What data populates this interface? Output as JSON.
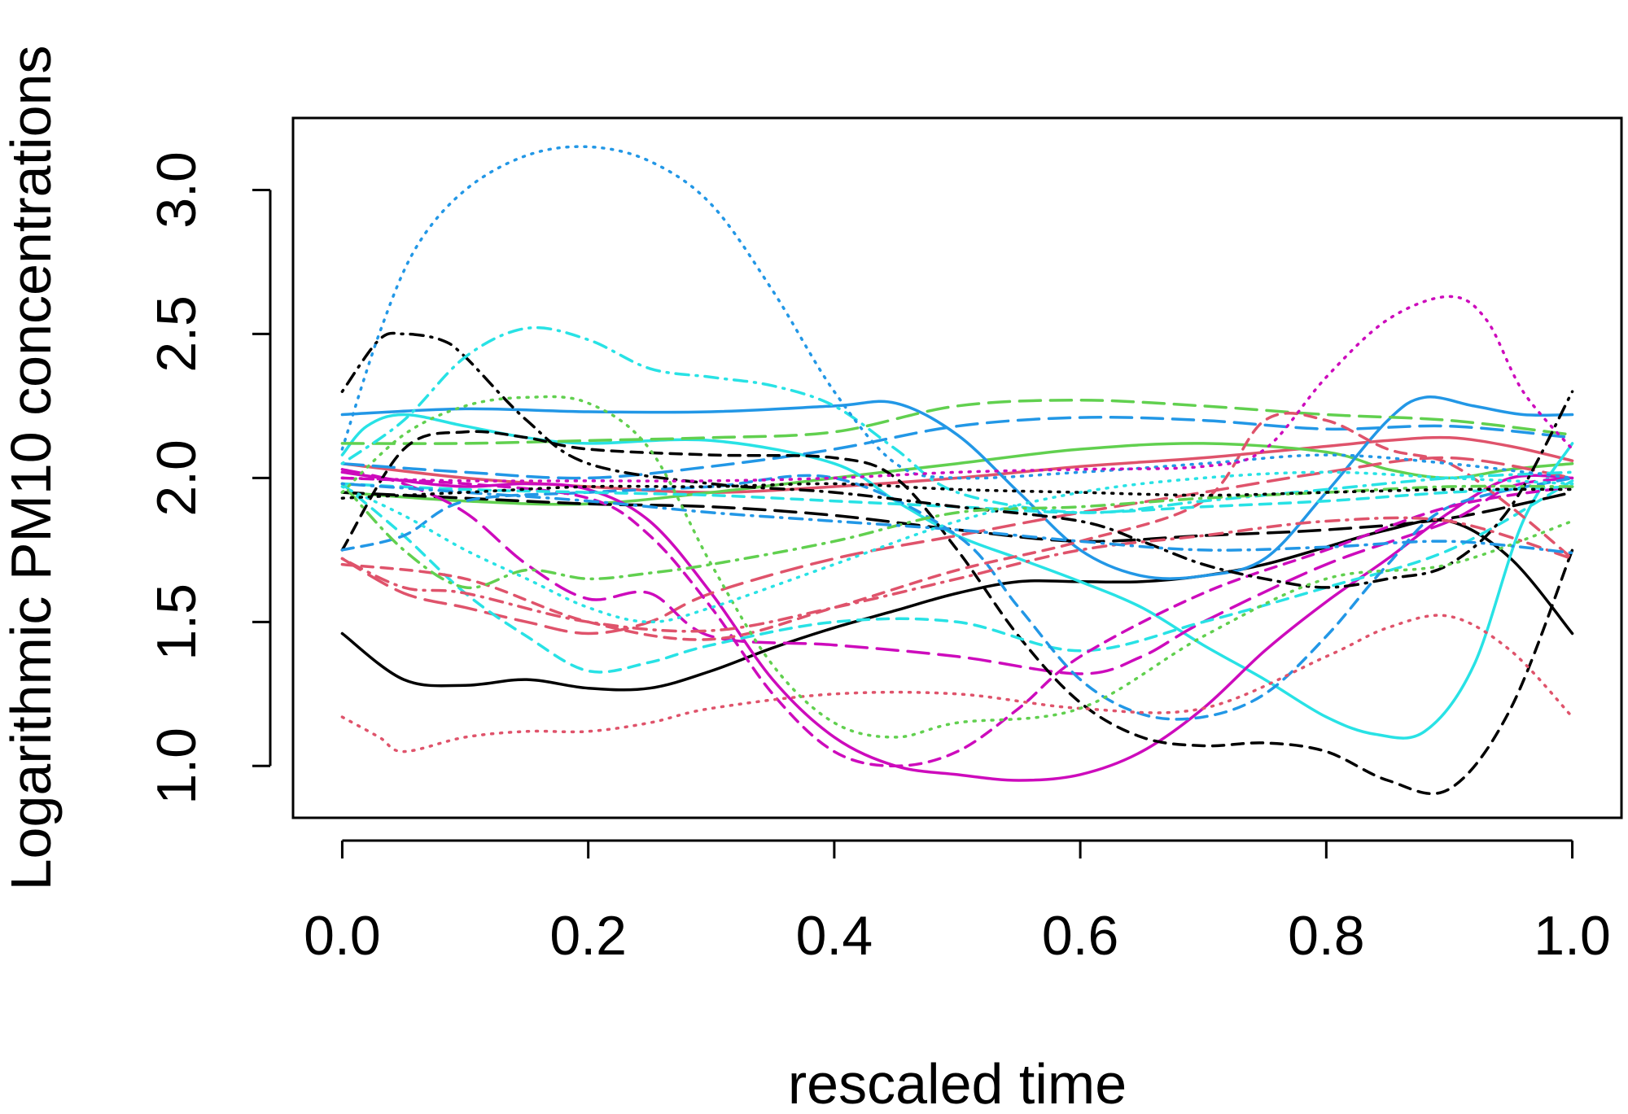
{
  "chart_data": {
    "type": "line",
    "title": "",
    "xlabel": "rescaled time",
    "ylabel": "Logarithmic PM10 concentrations",
    "xlim": [
      -0.04,
      1.04
    ],
    "ylim": [
      0.82,
      3.25
    ],
    "xticks": [
      0.0,
      0.2,
      0.4,
      0.6,
      0.8,
      1.0
    ],
    "xtick_labels": [
      "0.0",
      "0.2",
      "0.4",
      "0.6",
      "0.8",
      "1.0"
    ],
    "yticks": [
      1.0,
      1.5,
      2.0,
      2.5,
      3.0
    ],
    "ytick_labels": [
      "1.0",
      "1.5",
      "2.0",
      "2.5",
      "3.0"
    ],
    "grid": false,
    "legend": "none",
    "series": [
      {
        "color": "#000000",
        "dash": "solid",
        "x": [
          0,
          0.05,
          0.1,
          0.15,
          0.2,
          0.25,
          0.3,
          0.35,
          0.4,
          0.45,
          0.5,
          0.55,
          0.6,
          0.65,
          0.7,
          0.75,
          0.8,
          0.85,
          0.9,
          0.95,
          1
        ],
        "y": [
          1.46,
          1.3,
          1.28,
          1.3,
          1.27,
          1.27,
          1.33,
          1.41,
          1.48,
          1.54,
          1.6,
          1.64,
          1.64,
          1.64,
          1.66,
          1.7,
          1.76,
          1.82,
          1.85,
          1.72,
          1.46
        ]
      },
      {
        "color": "#DF536B",
        "dash": "solid",
        "x": [
          0,
          0.1,
          0.2,
          0.3,
          0.4,
          0.5,
          0.6,
          0.7,
          0.8,
          0.85,
          0.9,
          0.95,
          1
        ],
        "y": [
          2.05,
          2.0,
          1.97,
          1.95,
          1.97,
          2.0,
          2.04,
          2.07,
          2.11,
          2.13,
          2.14,
          2.11,
          2.06
        ]
      },
      {
        "color": "#61D04F",
        "dash": "solid",
        "x": [
          0,
          0.1,
          0.2,
          0.3,
          0.4,
          0.5,
          0.6,
          0.7,
          0.8,
          0.85,
          0.9,
          0.95,
          1
        ],
        "y": [
          1.95,
          1.92,
          1.91,
          1.95,
          2.0,
          2.05,
          2.1,
          2.12,
          2.09,
          2.03,
          2.0,
          2.03,
          2.05
        ]
      },
      {
        "color": "#2297E6",
        "dash": "solid",
        "x": [
          0,
          0.1,
          0.2,
          0.3,
          0.4,
          0.45,
          0.5,
          0.55,
          0.6,
          0.65,
          0.7,
          0.75,
          0.8,
          0.85,
          0.88,
          0.92,
          0.96,
          1
        ],
        "y": [
          2.22,
          2.24,
          2.23,
          2.23,
          2.25,
          2.26,
          2.15,
          1.95,
          1.75,
          1.66,
          1.66,
          1.72,
          1.95,
          2.2,
          2.28,
          2.25,
          2.22,
          2.22
        ]
      },
      {
        "color": "#28E2E5",
        "dash": "solid",
        "x": [
          0,
          0.02,
          0.05,
          0.1,
          0.15,
          0.2,
          0.3,
          0.4,
          0.45,
          0.5,
          0.55,
          0.6,
          0.65,
          0.7,
          0.75,
          0.8,
          0.84,
          0.88,
          0.92,
          0.96,
          1
        ],
        "y": [
          2.08,
          2.18,
          2.22,
          2.18,
          2.14,
          2.12,
          2.13,
          2.05,
          1.92,
          1.8,
          1.72,
          1.64,
          1.55,
          1.42,
          1.3,
          1.17,
          1.11,
          1.12,
          1.35,
          1.85,
          2.12
        ]
      },
      {
        "color": "#CD0BBC",
        "dash": "solid",
        "x": [
          0,
          0.05,
          0.1,
          0.15,
          0.2,
          0.25,
          0.3,
          0.35,
          0.4,
          0.45,
          0.5,
          0.55,
          0.6,
          0.65,
          0.7,
          0.75,
          0.8,
          0.85,
          0.9,
          0.95,
          1
        ],
        "y": [
          2.02,
          1.99,
          1.97,
          1.98,
          1.96,
          1.85,
          1.6,
          1.3,
          1.1,
          1.0,
          0.97,
          0.95,
          0.97,
          1.05,
          1.2,
          1.4,
          1.57,
          1.72,
          1.88,
          2.0,
          2.0
        ]
      },
      {
        "color": "#000000",
        "dash": "longdash",
        "x": [
          0,
          0.1,
          0.2,
          0.3,
          0.4,
          0.5,
          0.6,
          0.7,
          0.8,
          0.9,
          1
        ],
        "y": [
          1.95,
          1.93,
          1.91,
          1.9,
          1.87,
          1.82,
          1.78,
          1.8,
          1.82,
          1.86,
          1.95
        ]
      },
      {
        "color": "#61D04F",
        "dash": "longdash",
        "x": [
          0,
          0.1,
          0.2,
          0.3,
          0.4,
          0.5,
          0.6,
          0.7,
          0.8,
          0.9,
          1
        ],
        "y": [
          2.12,
          2.12,
          2.13,
          2.14,
          2.16,
          2.25,
          2.27,
          2.25,
          2.22,
          2.2,
          2.15
        ]
      },
      {
        "color": "#2297E6",
        "dash": "longdash",
        "x": [
          0,
          0.1,
          0.2,
          0.3,
          0.4,
          0.5,
          0.6,
          0.7,
          0.8,
          0.9,
          1
        ],
        "y": [
          2.05,
          2.02,
          2.0,
          2.04,
          2.1,
          2.18,
          2.21,
          2.2,
          2.17,
          2.18,
          2.14
        ]
      },
      {
        "color": "#DF536B",
        "dash": "longdash",
        "x": [
          0,
          0.05,
          0.1,
          0.15,
          0.2,
          0.25,
          0.3,
          0.4,
          0.5,
          0.6,
          0.7,
          0.8,
          0.9,
          1
        ],
        "y": [
          1.72,
          1.6,
          1.55,
          1.5,
          1.46,
          1.5,
          1.6,
          1.72,
          1.8,
          1.88,
          1.95,
          2.02,
          2.07,
          2.0
        ]
      },
      {
        "color": "#CD0BBC",
        "dash": "longdash",
        "x": [
          0,
          0.05,
          0.1,
          0.15,
          0.2,
          0.25,
          0.3,
          0.4,
          0.5,
          0.6,
          0.65,
          0.7,
          0.8,
          0.9,
          0.95,
          1
        ],
        "y": [
          2.03,
          1.98,
          1.88,
          1.7,
          1.58,
          1.6,
          1.45,
          1.42,
          1.38,
          1.32,
          1.38,
          1.5,
          1.7,
          1.85,
          1.97,
          2.0
        ]
      },
      {
        "color": "#000000",
        "dash": "dashed",
        "x": [
          0,
          0.05,
          0.1,
          0.15,
          0.2,
          0.3,
          0.4,
          0.45,
          0.5,
          0.55,
          0.6,
          0.65,
          0.7,
          0.75,
          0.8,
          0.85,
          0.9,
          0.95,
          1
        ],
        "y": [
          1.75,
          2.1,
          2.16,
          2.14,
          2.1,
          2.08,
          2.07,
          2.0,
          1.75,
          1.45,
          1.22,
          1.1,
          1.07,
          1.08,
          1.05,
          0.95,
          0.92,
          1.2,
          1.75
        ]
      },
      {
        "color": "#28E2E5",
        "dash": "dashed",
        "x": [
          0,
          0.05,
          0.1,
          0.15,
          0.2,
          0.25,
          0.3,
          0.4,
          0.5,
          0.6,
          0.7,
          0.8,
          0.9,
          1
        ],
        "y": [
          1.98,
          1.8,
          1.6,
          1.45,
          1.33,
          1.36,
          1.42,
          1.5,
          1.5,
          1.4,
          1.5,
          1.62,
          1.75,
          1.99
        ]
      },
      {
        "color": "#2297E6",
        "dash": "dashed",
        "x": [
          0,
          0.05,
          0.1,
          0.2,
          0.3,
          0.4,
          0.5,
          0.55,
          0.6,
          0.65,
          0.7,
          0.75,
          0.8,
          0.85,
          0.9,
          1
        ],
        "y": [
          1.75,
          1.8,
          1.92,
          1.95,
          1.97,
          2.0,
          1.8,
          1.55,
          1.3,
          1.18,
          1.17,
          1.25,
          1.45,
          1.7,
          1.9,
          2.0
        ]
      },
      {
        "color": "#CD0BBC",
        "dash": "dashed",
        "x": [
          0,
          0.1,
          0.2,
          0.25,
          0.3,
          0.35,
          0.4,
          0.45,
          0.5,
          0.55,
          0.6,
          0.7,
          0.8,
          0.9,
          1
        ],
        "y": [
          2.0,
          1.98,
          1.93,
          1.8,
          1.55,
          1.25,
          1.05,
          1.0,
          1.05,
          1.2,
          1.38,
          1.6,
          1.75,
          1.9,
          1.97
        ]
      },
      {
        "color": "#DF536B",
        "dash": "dashed",
        "x": [
          0,
          0.1,
          0.2,
          0.3,
          0.4,
          0.5,
          0.6,
          0.7,
          0.75,
          0.8,
          0.85,
          0.9,
          0.95,
          1
        ],
        "y": [
          1.7,
          1.65,
          1.5,
          1.44,
          1.55,
          1.68,
          1.78,
          1.92,
          2.2,
          2.2,
          2.1,
          2.05,
          1.9,
          1.72
        ]
      },
      {
        "color": "#28E2E5",
        "dash": "dashed",
        "x": [
          0,
          0.1,
          0.2,
          0.3,
          0.4,
          0.5,
          0.6,
          0.7,
          0.8,
          0.9,
          1
        ],
        "y": [
          1.98,
          1.96,
          1.95,
          1.94,
          1.92,
          1.9,
          1.88,
          1.9,
          1.92,
          1.95,
          1.97
        ]
      },
      {
        "color": "#000000",
        "dash": "dotdash",
        "x": [
          0,
          0.03,
          0.05,
          0.08,
          0.1,
          0.15,
          0.2,
          0.3,
          0.4,
          0.5,
          0.6,
          0.65,
          0.7,
          0.75,
          0.8,
          0.85,
          0.9,
          0.95,
          1
        ],
        "y": [
          2.3,
          2.48,
          2.5,
          2.48,
          2.42,
          2.2,
          2.05,
          1.98,
          1.95,
          1.9,
          1.85,
          1.78,
          1.7,
          1.65,
          1.62,
          1.65,
          1.7,
          1.9,
          2.3
        ]
      },
      {
        "color": "#28E2E5",
        "dash": "dotdash",
        "x": [
          0,
          0.05,
          0.1,
          0.15,
          0.2,
          0.25,
          0.3,
          0.35,
          0.4,
          0.45,
          0.5,
          0.6,
          0.7,
          0.8,
          0.9,
          1
        ],
        "y": [
          2.05,
          2.2,
          2.42,
          2.52,
          2.48,
          2.38,
          2.35,
          2.32,
          2.25,
          2.1,
          1.95,
          1.88,
          1.92,
          1.96,
          2.0,
          2.02
        ]
      },
      {
        "color": "#61D04F",
        "dash": "dotdash",
        "x": [
          0,
          0.05,
          0.1,
          0.15,
          0.2,
          0.25,
          0.3,
          0.4,
          0.5,
          0.6,
          0.7,
          0.8,
          0.9,
          1
        ],
        "y": [
          1.98,
          1.75,
          1.62,
          1.68,
          1.65,
          1.67,
          1.7,
          1.78,
          1.88,
          1.9,
          1.93,
          1.95,
          1.97,
          1.97
        ]
      },
      {
        "color": "#DF536B",
        "dash": "dotdash",
        "x": [
          0,
          0.05,
          0.1,
          0.2,
          0.3,
          0.4,
          0.5,
          0.6,
          0.7,
          0.8,
          0.9,
          1
        ],
        "y": [
          1.72,
          1.62,
          1.6,
          1.5,
          1.47,
          1.55,
          1.65,
          1.75,
          1.8,
          1.85,
          1.85,
          1.72
        ]
      },
      {
        "color": "#2297E6",
        "dash": "dotdash",
        "x": [
          0,
          0.1,
          0.2,
          0.3,
          0.4,
          0.5,
          0.6,
          0.7,
          0.8,
          0.9,
          1
        ],
        "y": [
          1.98,
          1.95,
          1.92,
          1.88,
          1.85,
          1.82,
          1.78,
          1.75,
          1.76,
          1.78,
          1.74
        ]
      },
      {
        "color": "#2297E6",
        "dash": "dotted",
        "x": [
          0,
          0.03,
          0.06,
          0.1,
          0.15,
          0.2,
          0.25,
          0.3,
          0.35,
          0.4,
          0.45,
          0.5,
          0.6,
          0.7,
          0.8,
          0.9,
          1
        ],
        "y": [
          2.1,
          2.5,
          2.8,
          3.0,
          3.12,
          3.15,
          3.1,
          2.95,
          2.65,
          2.3,
          2.05,
          2.0,
          2.02,
          2.05,
          2.08,
          2.05,
          2.0
        ]
      },
      {
        "color": "#CD0BBC",
        "dash": "dotted",
        "x": [
          0,
          0.1,
          0.2,
          0.3,
          0.4,
          0.5,
          0.6,
          0.7,
          0.75,
          0.8,
          0.85,
          0.9,
          0.93,
          0.96,
          1
        ],
        "y": [
          2.0,
          1.99,
          1.99,
          1.99,
          2.0,
          2.02,
          2.03,
          2.04,
          2.1,
          2.35,
          2.55,
          2.63,
          2.55,
          2.3,
          2.1
        ]
      },
      {
        "color": "#DF536B",
        "dash": "dotted",
        "x": [
          0,
          0.03,
          0.05,
          0.1,
          0.15,
          0.2,
          0.25,
          0.3,
          0.4,
          0.5,
          0.6,
          0.7,
          0.8,
          0.85,
          0.9,
          0.95,
          1
        ],
        "y": [
          1.17,
          1.1,
          1.05,
          1.1,
          1.12,
          1.12,
          1.15,
          1.2,
          1.25,
          1.25,
          1.2,
          1.2,
          1.38,
          1.48,
          1.52,
          1.4,
          1.17
        ]
      },
      {
        "color": "#61D04F",
        "dash": "dotted",
        "x": [
          0,
          0.05,
          0.1,
          0.15,
          0.2,
          0.25,
          0.3,
          0.35,
          0.4,
          0.45,
          0.5,
          0.6,
          0.7,
          0.8,
          0.9,
          1
        ],
        "y": [
          1.95,
          2.15,
          2.25,
          2.28,
          2.26,
          2.1,
          1.7,
          1.35,
          1.15,
          1.1,
          1.15,
          1.2,
          1.45,
          1.65,
          1.7,
          1.85
        ]
      },
      {
        "color": "#28E2E5",
        "dash": "dotted",
        "x": [
          0,
          0.05,
          0.1,
          0.15,
          0.2,
          0.25,
          0.3,
          0.4,
          0.5,
          0.6,
          0.7,
          0.8,
          0.9,
          1
        ],
        "y": [
          1.97,
          1.87,
          1.75,
          1.65,
          1.55,
          1.5,
          1.55,
          1.7,
          1.85,
          1.95,
          2.0,
          2.02,
          2.0,
          1.98
        ]
      },
      {
        "color": "#000000",
        "dash": "dotted",
        "x": [
          0,
          0.1,
          0.2,
          0.3,
          0.4,
          0.5,
          0.6,
          0.7,
          0.8,
          0.9,
          1
        ],
        "y": [
          1.93,
          1.95,
          1.97,
          1.97,
          1.98,
          1.96,
          1.95,
          1.94,
          1.95,
          1.96,
          1.96
        ]
      }
    ]
  }
}
